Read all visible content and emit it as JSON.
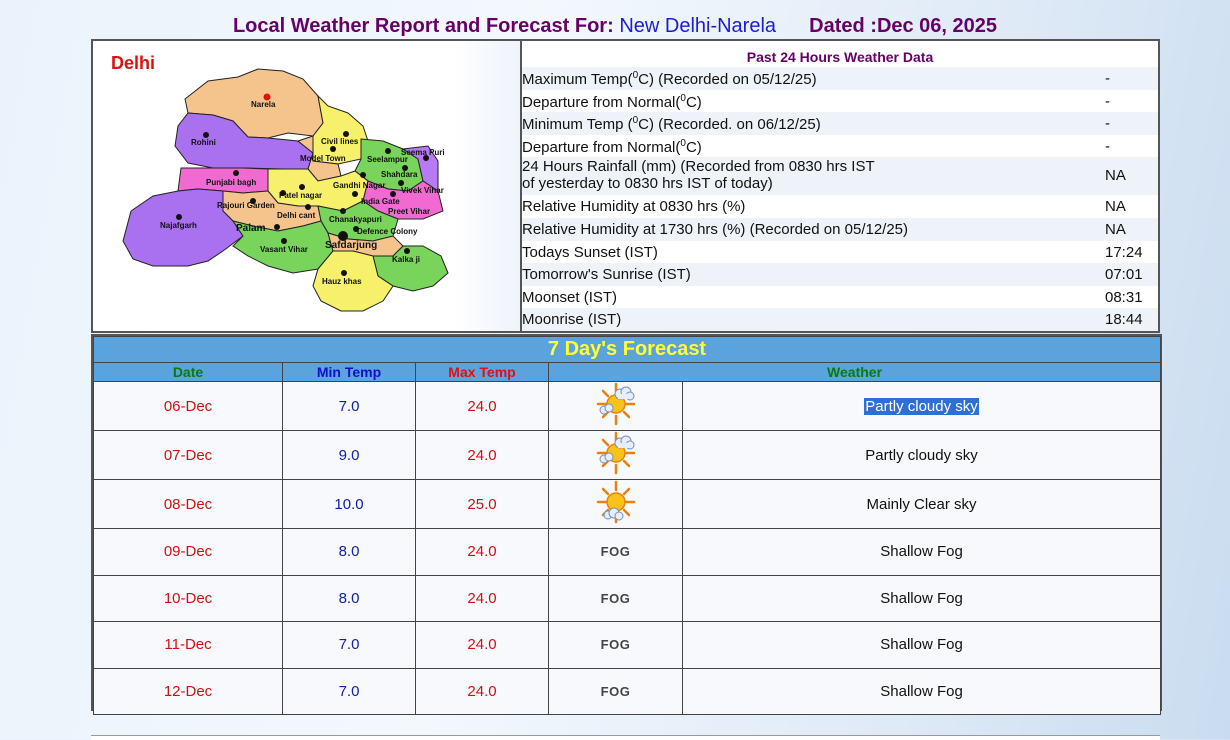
{
  "header": {
    "label": "Local Weather Report and Forecast For:",
    "location": "New Delhi-Narela",
    "dated": "Dated :Dec 06, 2025"
  },
  "map": {
    "title": "Delhi",
    "places": [
      "Narela",
      "Rohini",
      "Civil lines",
      "Seema Puri",
      "Model Town",
      "Seelampur",
      "Shahdara",
      "Punjabi bagh",
      "Gandhi Nagar",
      "Vivek Vihar",
      "Patel nagar",
      "India Gate",
      "Rajouri Garden",
      "Preet Vihar",
      "Delhi cant",
      "Chanakyapuri",
      "Najafgarh",
      "Palam",
      "Defence Colony",
      "Safdarjung",
      "Vasant Vihar",
      "Kalka ji",
      "Hauz khas"
    ]
  },
  "past24": {
    "title": "Past 24 Hours Weather Data",
    "rows": [
      {
        "pre": "Maximum Temp(",
        "sup": "0",
        "post": "C) (Recorded on 05/12/25)",
        "value": "-"
      },
      {
        "pre": "Departure from Normal(",
        "sup": "0",
        "post": "C)",
        "value": "-"
      },
      {
        "pre": "Minimum Temp (",
        "sup": "0",
        "post": "C) (Recorded. on 06/12/25)",
        "value": "-"
      },
      {
        "pre": "Departure from Normal(",
        "sup": "0",
        "post": "C)",
        "value": "-"
      },
      {
        "line1": "24 Hours Rainfall (mm) (Recorded from 0830 hrs IST",
        "line2": "of yesterday to 0830 hrs IST of today)",
        "value": "NA"
      },
      {
        "label": "Relative Humidity at 0830 hrs (%)",
        "value": "NA"
      },
      {
        "label": "Relative Humidity at 1730 hrs (%) (Recorded on 05/12/25)",
        "value": "NA"
      },
      {
        "label": "Todays Sunset (IST)",
        "value": "17:24"
      },
      {
        "label": "Tomorrow's Sunrise (IST)",
        "value": "07:01"
      },
      {
        "label": "Moonset (IST)",
        "value": "08:31"
      },
      {
        "label": "Moonrise (IST)",
        "value": "18:44"
      }
    ]
  },
  "forecast": {
    "title": "7 Day's Forecast",
    "headers": {
      "date": "Date",
      "min": "Min Temp",
      "max": "Max Temp",
      "weather": "Weather"
    },
    "fog_label": "FOG",
    "rows": [
      {
        "date": "06-Dec",
        "min": "7.0",
        "max": "24.0",
        "icon": "partly-cloudy-icon",
        "weather": "Partly cloudy sky"
      },
      {
        "date": "07-Dec",
        "min": "9.0",
        "max": "24.0",
        "icon": "partly-cloudy-icon",
        "weather": "Partly cloudy sky"
      },
      {
        "date": "08-Dec",
        "min": "10.0",
        "max": "25.0",
        "icon": "mainly-clear-icon",
        "weather": "Mainly Clear sky"
      },
      {
        "date": "09-Dec",
        "min": "8.0",
        "max": "24.0",
        "icon": "fog-icon",
        "weather": "Shallow Fog"
      },
      {
        "date": "10-Dec",
        "min": "8.0",
        "max": "24.0",
        "icon": "fog-icon",
        "weather": "Shallow Fog"
      },
      {
        "date": "11-Dec",
        "min": "7.0",
        "max": "24.0",
        "icon": "fog-icon",
        "weather": "Shallow Fog"
      },
      {
        "date": "12-Dec",
        "min": "7.0",
        "max": "24.0",
        "icon": "fog-icon",
        "weather": "Shallow Fog"
      }
    ]
  },
  "colors": {
    "header_purple": "#660066",
    "location_blue": "#1c1cd0",
    "forecast_header_bg": "#5ba3dc",
    "forecast_title": "#ffff33",
    "date_red": "#cc1111",
    "min_blue": "#1020a8"
  }
}
